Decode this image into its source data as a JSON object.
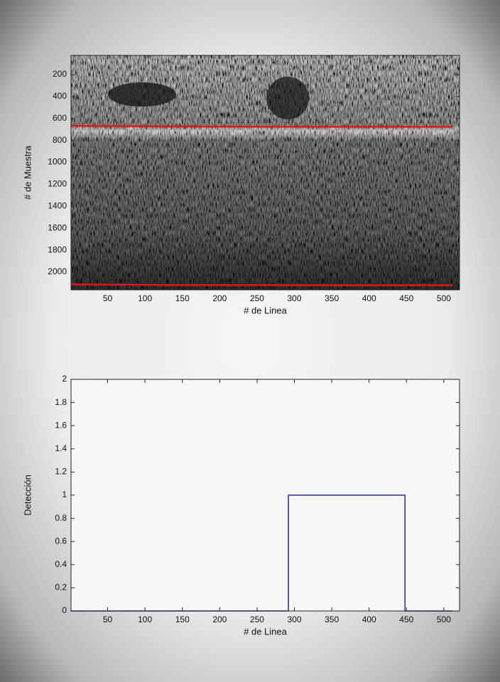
{
  "chart_data": [
    {
      "type": "image",
      "xlabel": "# de Linea",
      "ylabel": "# de Muestra",
      "xlim": [
        1,
        521
      ],
      "ylim": [
        25,
        2162
      ],
      "y_reversed": true,
      "xticks": [
        50,
        100,
        150,
        200,
        250,
        300,
        350,
        400,
        450,
        500
      ],
      "yticks": [
        200,
        400,
        600,
        800,
        1000,
        1200,
        1400,
        1600,
        1800,
        2000
      ],
      "series": [
        {
          "color": "#e01818",
          "x": [
            1,
            130,
            320,
            512
          ],
          "values": [
            668,
            672,
            676,
            676
          ]
        },
        {
          "color": "#e01818",
          "x": [
            1,
            130,
            320,
            512
          ],
          "values": [
            2112,
            2118,
            2120,
            2120
          ]
        }
      ]
    },
    {
      "type": "line",
      "xlabel": "# de Linea",
      "ylabel": "Detección",
      "xlim": [
        1,
        521
      ],
      "ylim": [
        0,
        2
      ],
      "xticks": [
        50,
        100,
        150,
        200,
        250,
        300,
        350,
        400,
        450,
        500
      ],
      "yticks": [
        0,
        0.2,
        0.4,
        0.6,
        0.8,
        1,
        1.2,
        1.4,
        1.6,
        1.8,
        2
      ],
      "series": [
        {
          "color": "#2a2aa0",
          "x": [
            1,
            292,
            292,
            448,
            448,
            512
          ],
          "values": [
            0,
            0,
            1,
            1,
            0,
            0
          ]
        }
      ]
    }
  ]
}
